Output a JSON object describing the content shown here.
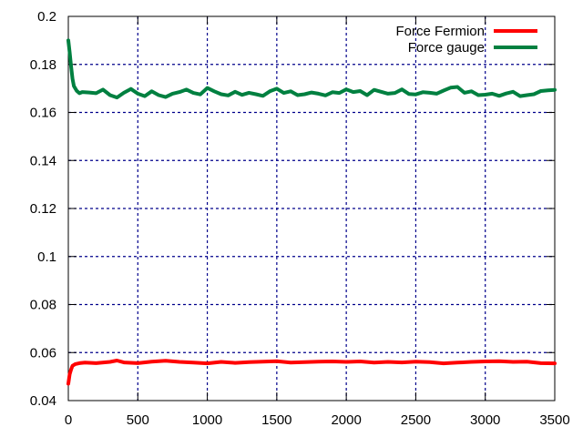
{
  "chart_data": {
    "type": "line",
    "title": "",
    "xlabel": "",
    "ylabel": "",
    "xlim": [
      0,
      3500
    ],
    "ylim": [
      0.04,
      0.2
    ],
    "x_ticks": [
      0,
      500,
      1000,
      1500,
      2000,
      2500,
      3000,
      3500
    ],
    "x_tick_labels": [
      "0",
      "500",
      "1000",
      "1500",
      "2000",
      "2500",
      "3000",
      "3500"
    ],
    "y_ticks": [
      0.04,
      0.06,
      0.08,
      0.1,
      0.12,
      0.14,
      0.16,
      0.18,
      0.2
    ],
    "y_tick_labels": [
      "0.04",
      "0.06",
      "0.08",
      "0.1",
      "0.12",
      "0.14",
      "0.16",
      "0.18",
      "0.2"
    ],
    "grid": true,
    "grid_color": "#00008b",
    "legend_position": "top-right",
    "series": [
      {
        "name": "Force Fermion",
        "color": "#ff0000",
        "x": [
          0,
          10,
          20,
          30,
          50,
          80,
          120,
          200,
          300,
          350,
          400,
          500,
          600,
          700,
          800,
          900,
          1000,
          1100,
          1200,
          1300,
          1400,
          1500,
          1600,
          1700,
          1800,
          1900,
          2000,
          2100,
          2200,
          2300,
          2400,
          2500,
          2600,
          2700,
          2800,
          2900,
          3000,
          3100,
          3200,
          3300,
          3400,
          3500
        ],
        "y": [
          0.047,
          0.051,
          0.053,
          0.0545,
          0.0552,
          0.0556,
          0.0558,
          0.0556,
          0.0561,
          0.0567,
          0.0559,
          0.0556,
          0.0562,
          0.0566,
          0.0561,
          0.0558,
          0.0555,
          0.0561,
          0.0557,
          0.056,
          0.0562,
          0.0564,
          0.0558,
          0.056,
          0.0562,
          0.0563,
          0.0561,
          0.0563,
          0.0558,
          0.0561,
          0.0559,
          0.0562,
          0.056,
          0.0555,
          0.0558,
          0.0561,
          0.0563,
          0.0564,
          0.0561,
          0.0562,
          0.0556,
          0.0555
        ]
      },
      {
        "name": "Force gauge",
        "color": "#008040",
        "x": [
          0,
          10,
          20,
          30,
          40,
          60,
          80,
          100,
          150,
          200,
          250,
          300,
          350,
          400,
          450,
          500,
          550,
          600,
          650,
          700,
          750,
          800,
          850,
          900,
          950,
          1000,
          1050,
          1100,
          1150,
          1200,
          1250,
          1300,
          1350,
          1400,
          1450,
          1500,
          1550,
          1600,
          1650,
          1700,
          1750,
          1800,
          1850,
          1900,
          1950,
          2000,
          2050,
          2100,
          2150,
          2200,
          2250,
          2300,
          2350,
          2400,
          2450,
          2500,
          2550,
          2600,
          2650,
          2700,
          2750,
          2800,
          2850,
          2900,
          2950,
          3000,
          3050,
          3100,
          3150,
          3200,
          3250,
          3300,
          3350,
          3400,
          3450,
          3500
        ],
        "y": [
          0.19,
          0.185,
          0.179,
          0.174,
          0.171,
          0.169,
          0.168,
          0.1685,
          0.1683,
          0.168,
          0.1695,
          0.1672,
          0.1662,
          0.1682,
          0.1698,
          0.1678,
          0.1668,
          0.1688,
          0.1672,
          0.1664,
          0.1678,
          0.1685,
          0.1695,
          0.1681,
          0.1675,
          0.1702,
          0.1688,
          0.1676,
          0.1671,
          0.1686,
          0.1673,
          0.1682,
          0.1676,
          0.1669,
          0.1688,
          0.1699,
          0.1681,
          0.1688,
          0.1672,
          0.1676,
          0.1683,
          0.1678,
          0.1671,
          0.1684,
          0.1681,
          0.1696,
          0.1685,
          0.1689,
          0.1672,
          0.1694,
          0.1686,
          0.1678,
          0.1681,
          0.1696,
          0.1677,
          0.1675,
          0.1684,
          0.1682,
          0.1678,
          0.1691,
          0.1703,
          0.1706,
          0.1682,
          0.1688,
          0.1672,
          0.1674,
          0.1678,
          0.1669,
          0.1679,
          0.1686,
          0.1668,
          0.1672,
          0.1676,
          0.1689,
          0.1692,
          0.1694
        ]
      }
    ]
  }
}
